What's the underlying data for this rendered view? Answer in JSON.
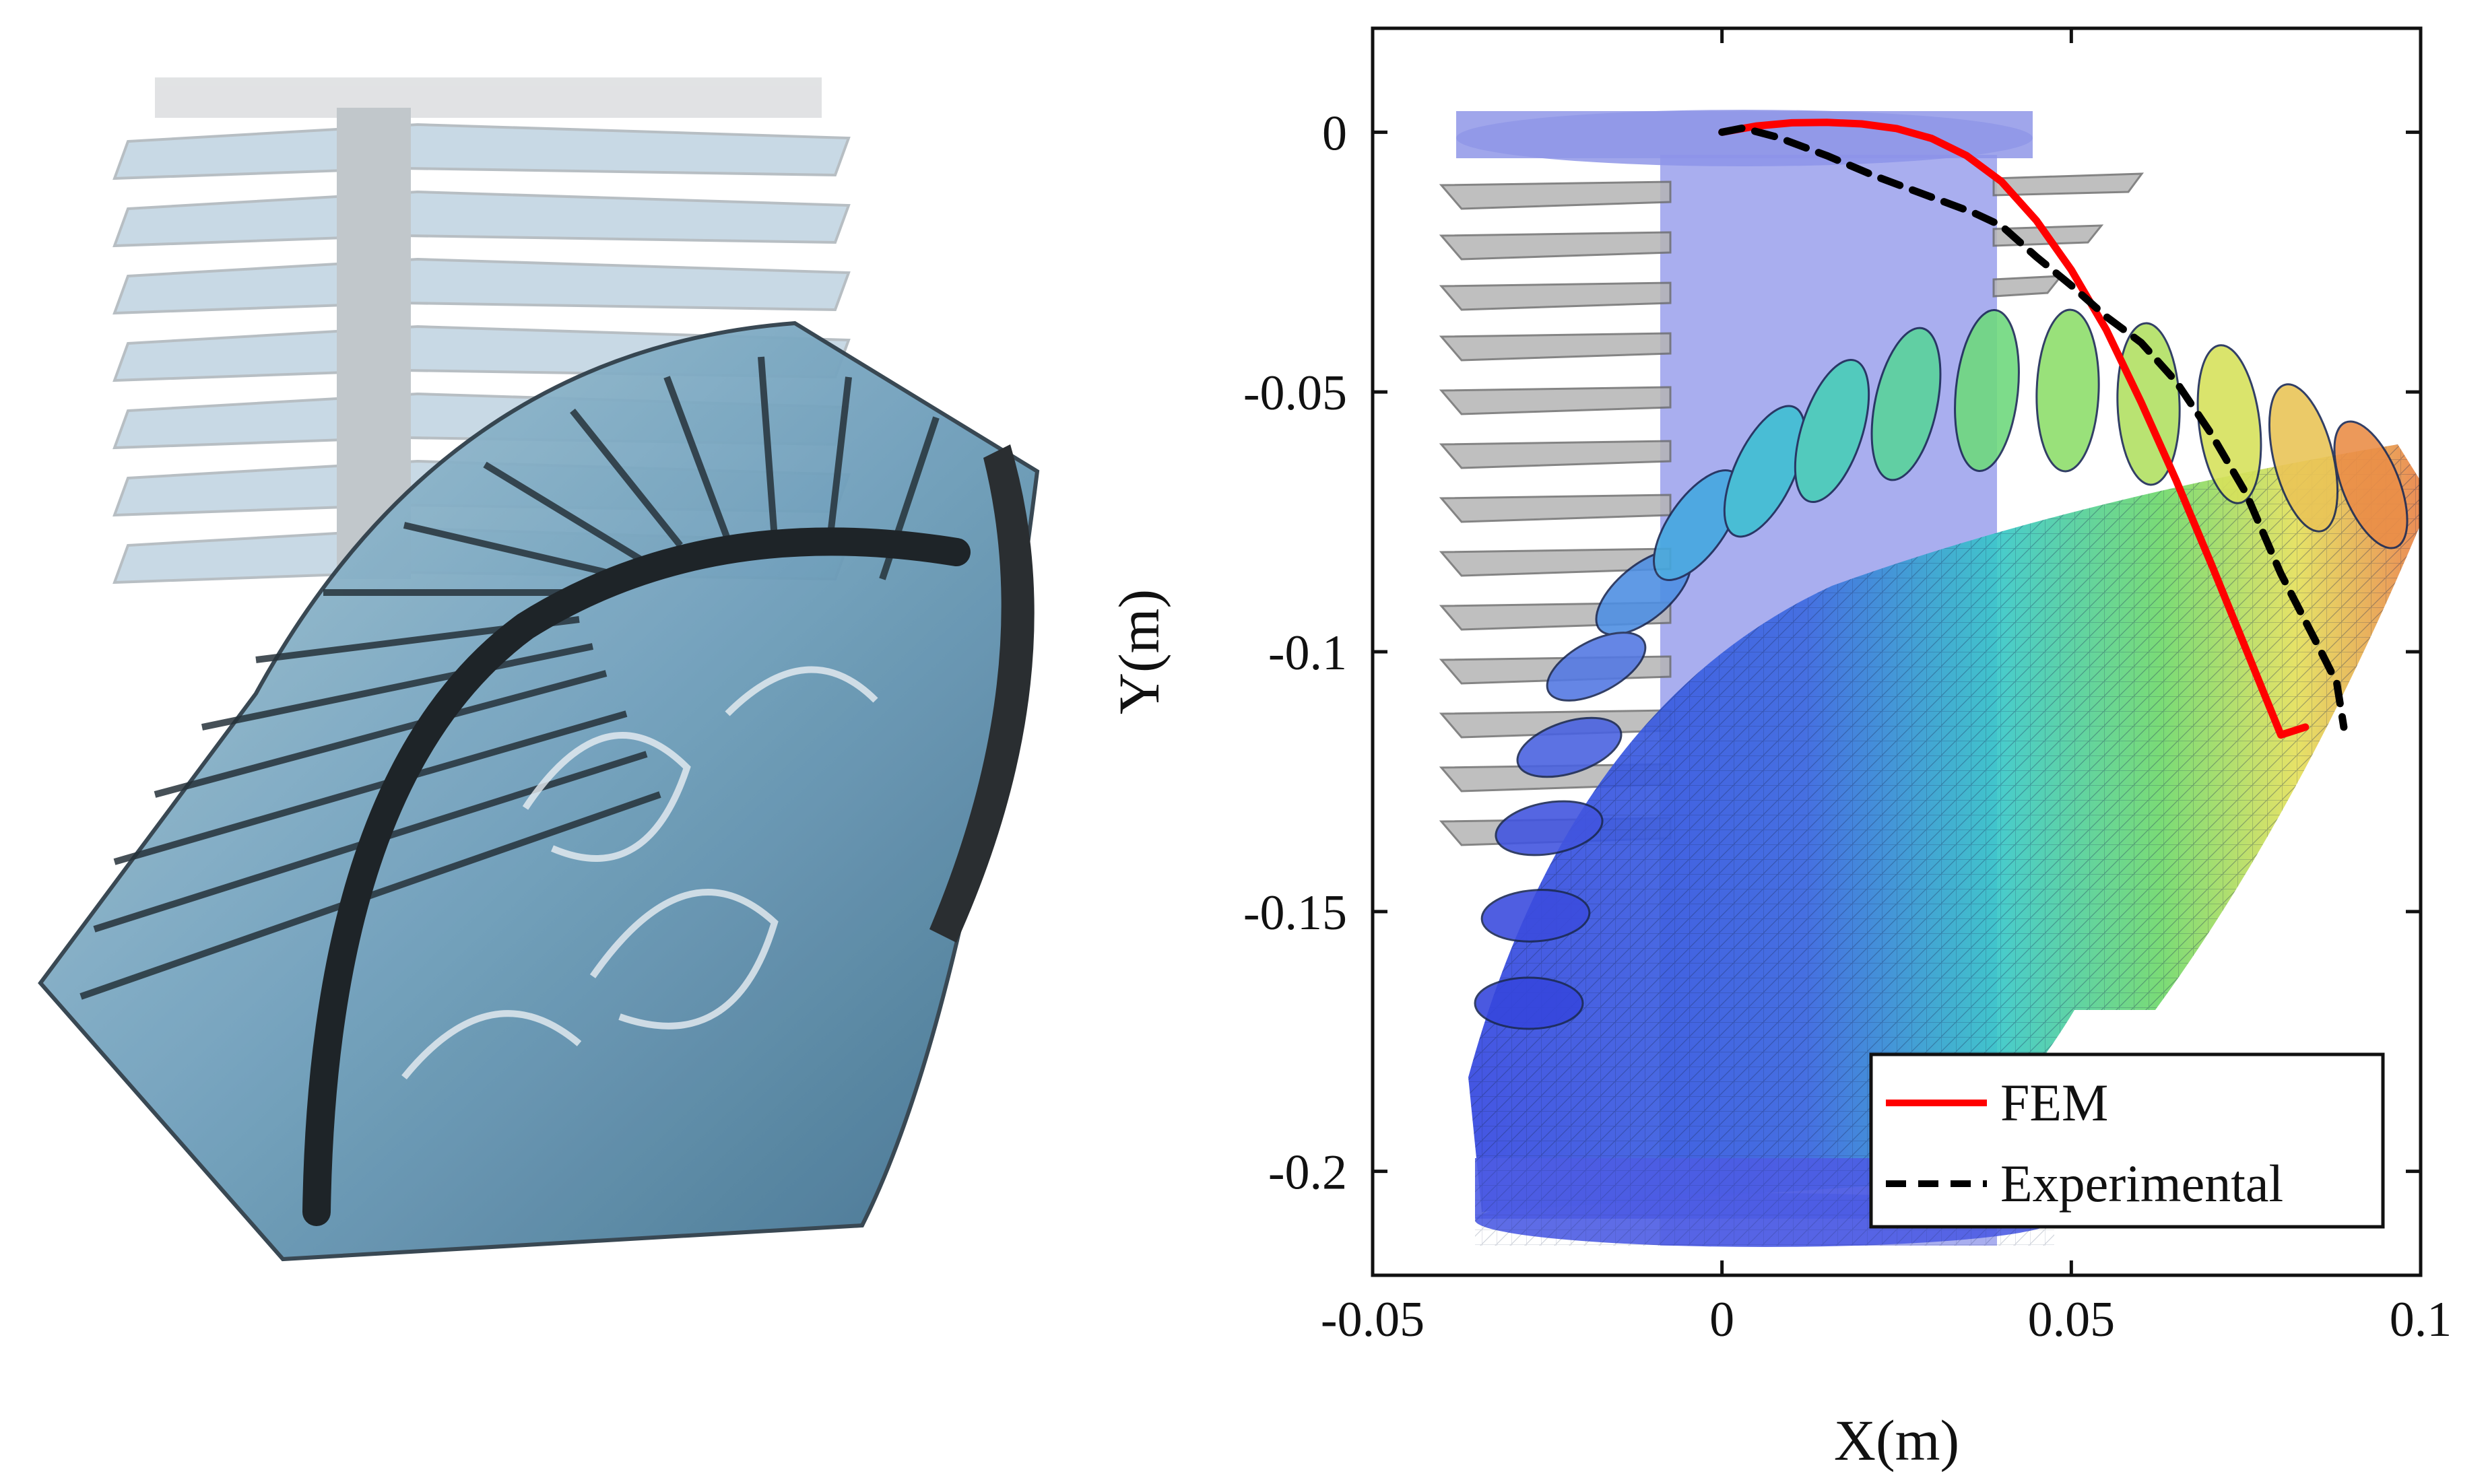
{
  "chart_data": {
    "type": "line",
    "xlabel": "X(m)",
    "ylabel": "Y(m)",
    "xlim": [
      -0.05,
      0.1
    ],
    "ylim": [
      -0.22,
      0.02
    ],
    "xticks": [
      -0.05,
      0,
      0.05,
      0.1
    ],
    "xtick_labels": [
      "-0.05",
      "0",
      "0.05",
      "0.1"
    ],
    "yticks": [
      0,
      -0.05,
      -0.1,
      -0.15,
      -0.2
    ],
    "ytick_labels": [
      "0",
      "-0.05",
      "-0.1",
      "-0.15",
      "-0.2"
    ],
    "grid": false,
    "legend_position": "bottom-right",
    "series": [
      {
        "name": "FEM",
        "color": "#ff0000",
        "style": "solid",
        "x": [
          0,
          0.005,
          0.01,
          0.015,
          0.02,
          0.025,
          0.03,
          0.035,
          0.04,
          0.045,
          0.05,
          0.055,
          0.06,
          0.065,
          0.07,
          0.075,
          0.08,
          0.0835
        ],
        "y": [
          0,
          0.0012,
          0.0018,
          0.0019,
          0.0016,
          0.0007,
          -0.0012,
          -0.0045,
          -0.0095,
          -0.017,
          -0.0265,
          -0.038,
          -0.052,
          -0.067,
          -0.083,
          -0.0995,
          -0.116,
          -0.1145
        ]
      },
      {
        "name": "Experimental",
        "color": "#000000",
        "style": "dashed",
        "x": [
          0,
          0.003,
          0.008,
          0.015,
          0.022,
          0.03,
          0.036,
          0.04,
          0.045,
          0.05,
          0.055,
          0.06,
          0.065,
          0.07,
          0.075,
          0.08,
          0.085,
          0.088,
          0.089
        ],
        "y": [
          0,
          0.0008,
          -0.001,
          -0.0045,
          -0.0085,
          -0.0125,
          -0.0155,
          -0.018,
          -0.024,
          -0.0295,
          -0.0355,
          -0.0405,
          -0.048,
          -0.058,
          -0.0695,
          -0.085,
          -0.098,
          -0.106,
          -0.1145
        ]
      }
    ]
  },
  "colors": {
    "fem_line": "#ff0000",
    "experimental_line": "#000000",
    "mesh_blue": "#3a4fe0",
    "mesh_green": "#6fd86a",
    "mesh_yellow": "#e8e05c",
    "mesh_orange": "#e98a4a",
    "gripper_blue": "#7fa8c4"
  },
  "images": {
    "left_photo": "soft-bellows-actuator-photo",
    "background_mesh": "fem-mesh-rendering"
  }
}
